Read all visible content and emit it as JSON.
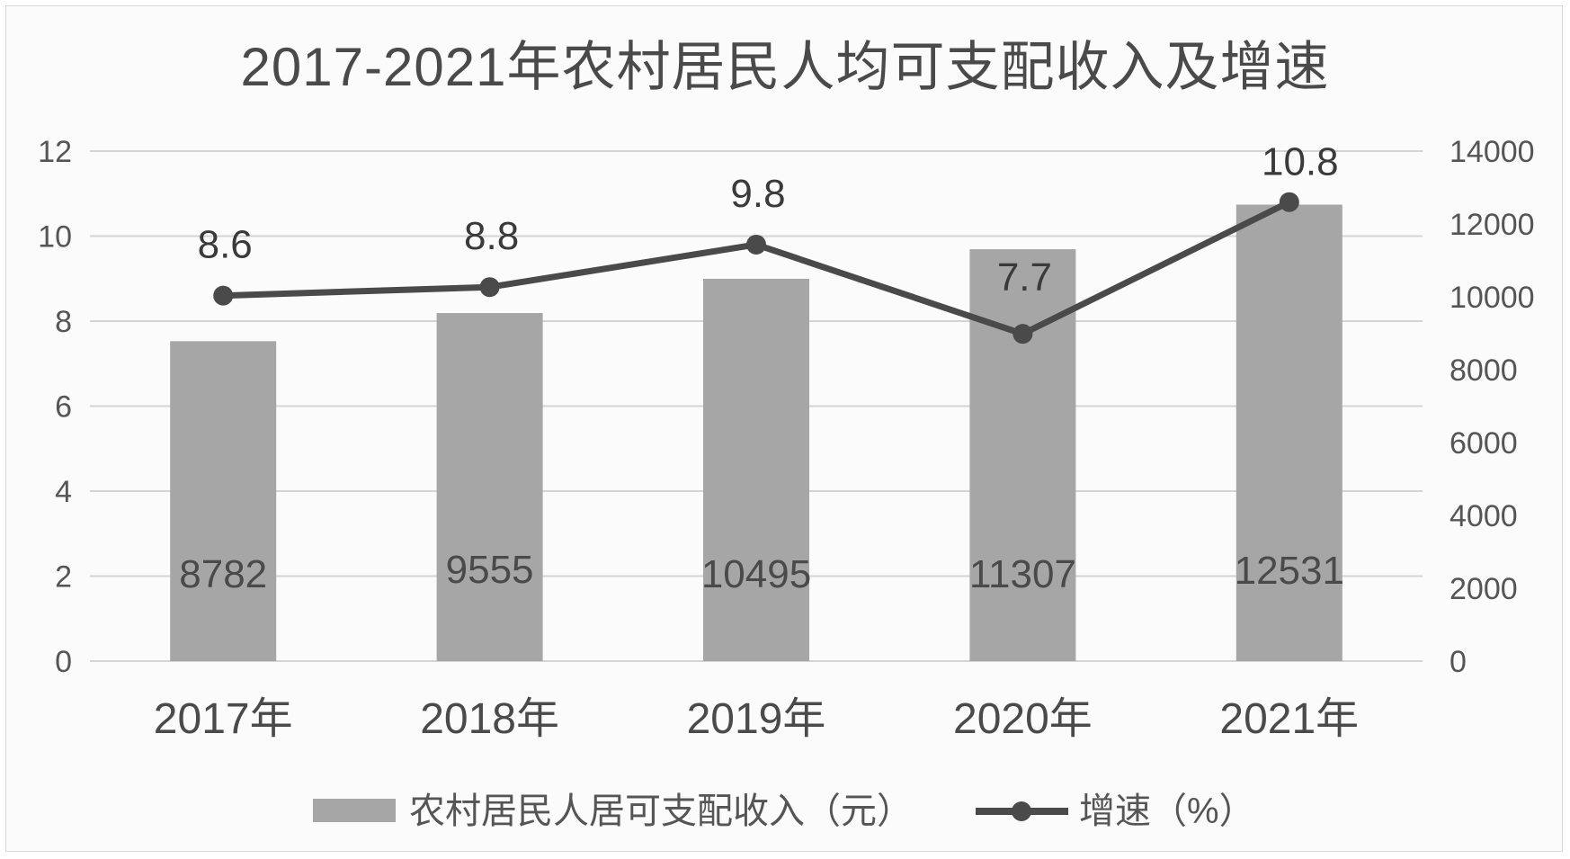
{
  "chart_data": {
    "type": "bar",
    "title": "2017-2021年农村居民人均可支配收入及增速",
    "categories": [
      "2017年",
      "2018年",
      "2019年",
      "2020年",
      "2021年"
    ],
    "series": [
      {
        "name": "农村居民人居可支配收入（元）",
        "type": "bar",
        "axis": "right",
        "values": [
          8782,
          9555,
          10495,
          11307,
          12531
        ],
        "color": "#a6a6a6"
      },
      {
        "name": "增速（%）",
        "type": "line",
        "axis": "left",
        "values": [
          8.6,
          8.8,
          9.8,
          7.7,
          10.8
        ],
        "color": "#4a4a4a"
      }
    ],
    "y_left": {
      "min": 0,
      "max": 12,
      "ticks": [
        "0",
        "2",
        "4",
        "6",
        "8",
        "10",
        "12"
      ]
    },
    "y_right": {
      "min": 0,
      "max": 14000,
      "ticks": [
        "0",
        "2000",
        "4000",
        "6000",
        "8000",
        "10000",
        "12000",
        "14000"
      ]
    },
    "grid": true,
    "legend": "bottom"
  }
}
